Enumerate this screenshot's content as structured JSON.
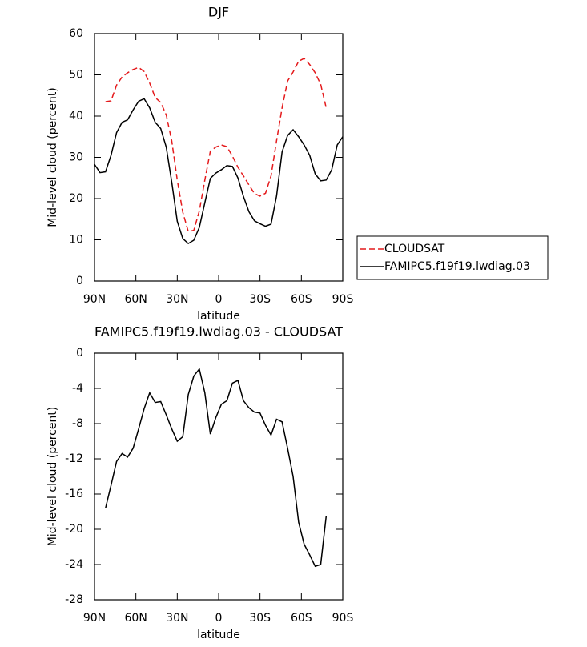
{
  "chart_data": [
    {
      "type": "line",
      "title": "DJF",
      "xlabel": "latitude",
      "ylabel": "Mid-level cloud (percent)",
      "x": [
        90,
        86,
        82,
        78,
        74,
        70,
        66,
        62,
        58,
        54,
        50,
        46,
        42,
        38,
        34,
        30,
        26,
        22,
        18,
        14,
        10,
        6,
        2,
        -2,
        -6,
        -10,
        -14,
        -18,
        -22,
        -26,
        -30,
        -34,
        -38,
        -42,
        -46,
        -50,
        -54,
        -58,
        -62,
        -66,
        -70,
        -74,
        -78,
        -82,
        -86,
        -90
      ],
      "series": [
        {
          "name": "CLOUDSAT",
          "color": "#e41a1c",
          "dashed": true,
          "values": [
            null,
            null,
            43.5,
            43.7,
            47.5,
            49.5,
            50.5,
            51.3,
            51.8,
            50.8,
            48,
            44.5,
            43.3,
            40.3,
            34,
            24.5,
            16.7,
            12,
            12.3,
            17,
            24.5,
            31.5,
            32.5,
            33,
            32.6,
            30.3,
            27.6,
            25.5,
            23.3,
            21.2,
            20.6,
            21.3,
            25.5,
            34,
            42,
            48.5,
            50.7,
            53.3,
            54,
            52.5,
            50.5,
            47.7,
            42,
            null,
            null,
            null
          ]
        },
        {
          "name": "FAMIPC5.f19f19.lwdiag.03",
          "color": "#000000",
          "dashed": false,
          "values": [
            28.3,
            26.3,
            26.5,
            30.5,
            36,
            38.5,
            39.1,
            41.5,
            43.6,
            44.2,
            42,
            38.5,
            37,
            32.5,
            24,
            14.5,
            10.3,
            9.1,
            9.9,
            13,
            19,
            24.9,
            26.2,
            27,
            28,
            27.8,
            25,
            20.5,
            16.8,
            14.6,
            13.9,
            13.3,
            13.8,
            20.6,
            31.3,
            35.3,
            36.7,
            35,
            33,
            30.5,
            26,
            24.3,
            24.5,
            27,
            33,
            35
          ]
        }
      ],
      "xlim": [
        90,
        -90
      ],
      "xticks": [
        {
          "value": 90,
          "label": "90N"
        },
        {
          "value": 60,
          "label": "60N"
        },
        {
          "value": 30,
          "label": "30N"
        },
        0,
        {
          "value": -30,
          "label": "30S"
        },
        {
          "value": -60,
          "label": "60S"
        },
        {
          "value": -90,
          "label": "90S"
        }
      ],
      "ylim": [
        0,
        60
      ],
      "yticks": [
        0,
        10,
        20,
        30,
        40,
        50,
        60
      ],
      "legend": "outside right"
    },
    {
      "type": "line",
      "title": "FAMIPC5.f19f19.lwdiag.03 - CLOUDSAT",
      "xlabel": "latitude",
      "ylabel": "Mid-level cloud (percent)",
      "x": [
        90,
        86,
        82,
        78,
        74,
        70,
        66,
        62,
        58,
        54,
        50,
        46,
        42,
        38,
        34,
        30,
        26,
        22,
        18,
        14,
        10,
        6,
        2,
        -2,
        -6,
        -10,
        -14,
        -18,
        -22,
        -26,
        -30,
        -34,
        -38,
        -42,
        -46,
        -50,
        -54,
        -58,
        -62,
        -66,
        -70,
        -74,
        -78,
        -82,
        -86,
        -90
      ],
      "series": [
        {
          "color": "#000000",
          "dashed": false,
          "values": [
            null,
            null,
            -17.6,
            -15,
            -12.3,
            -11.4,
            -11.8,
            -10.8,
            -8.6,
            -6.3,
            -4.5,
            -5.6,
            -5.5,
            -7,
            -8.6,
            -10,
            -9.5,
            -4.7,
            -2.6,
            -1.8,
            -4.5,
            -9.2,
            -7.3,
            -5.8,
            -5.4,
            -3.4,
            -3.1,
            -5.4,
            -6.2,
            -6.7,
            -6.8,
            -8.2,
            -9.3,
            -7.5,
            -7.8,
            -10.8,
            -14,
            -19.2,
            -21.7,
            -22.9,
            -24.2,
            -24,
            -18.5,
            null,
            null,
            null
          ]
        }
      ],
      "xlim": [
        90,
        -90
      ],
      "xticks": [
        {
          "value": 90,
          "label": "90N"
        },
        {
          "value": 60,
          "label": "60N"
        },
        {
          "value": 30,
          "label": "30N"
        },
        0,
        {
          "value": -30,
          "label": "30S"
        },
        {
          "value": -60,
          "label": "60S"
        },
        {
          "value": -90,
          "label": "90S"
        }
      ],
      "ylim": [
        -28,
        0
      ],
      "yticks": [
        -28,
        -24,
        -20,
        -16,
        -12,
        -8,
        -4,
        0
      ]
    }
  ]
}
